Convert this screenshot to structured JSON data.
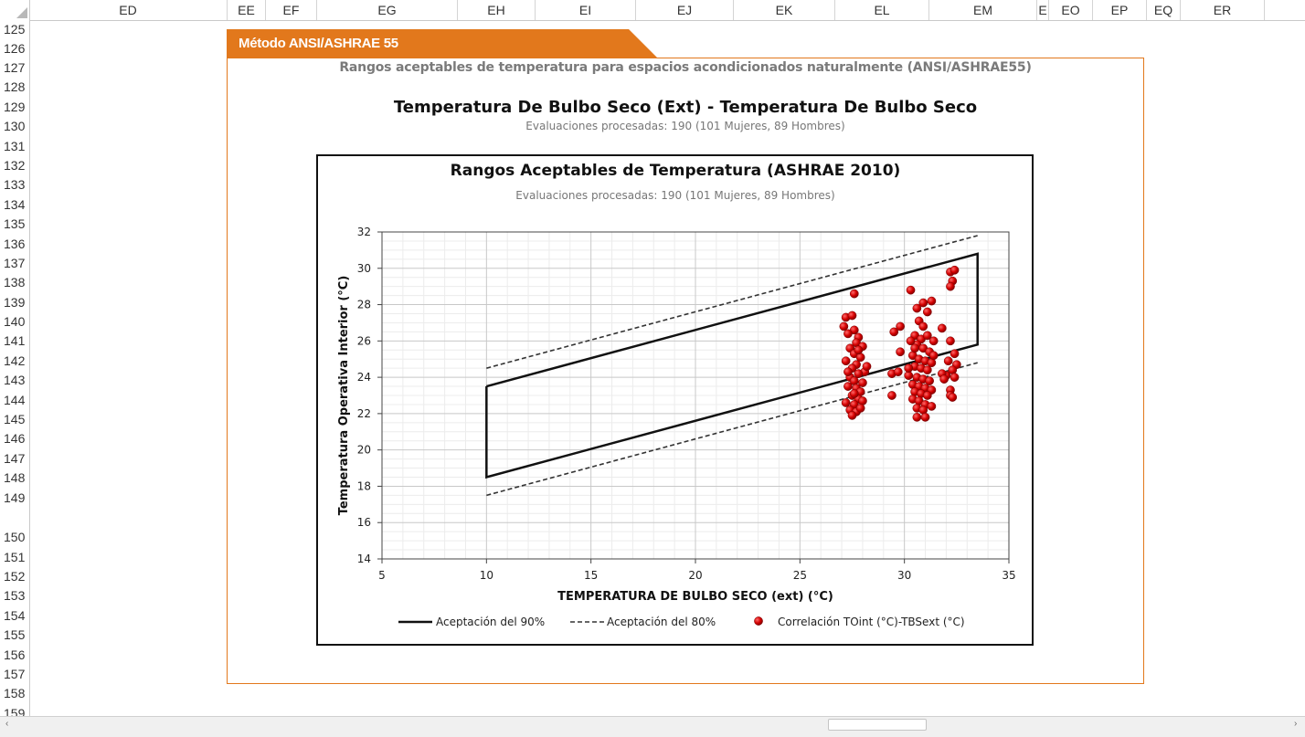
{
  "spreadsheet": {
    "columns": [
      "ED",
      "EE",
      "EF",
      "EG",
      "EH",
      "EI",
      "EJ",
      "EK",
      "EL",
      "EM",
      "E",
      "EO",
      "EP",
      "EQ",
      "ER"
    ],
    "rows": [
      "125",
      "126",
      "127",
      "128",
      "129",
      "130",
      "131",
      "132",
      "133",
      "134",
      "135",
      "136",
      "137",
      "138",
      "139",
      "140",
      "141",
      "142",
      "143",
      "144",
      "145",
      "146",
      "147",
      "148",
      "149",
      "150",
      "151",
      "152",
      "153",
      "154",
      "155",
      "156",
      "157",
      "158",
      "159"
    ]
  },
  "section": {
    "tab_label": "Método ANSI/ASHRAE 55",
    "subheading": "Rangos aceptables de temperatura para espacios acondicionados naturalmente (ANSI/ASHRAE55)",
    "title": "Temperatura De Bulbo Seco (Ext) - Temperatura De Bulbo Seco",
    "subtitle": "Evaluaciones procesadas: 190 (101 Mujeres, 89 Hombres)"
  },
  "colors": {
    "accent": "#e2781c",
    "points": "#d40000",
    "lines": "#111111"
  },
  "chart_data": {
    "type": "scatter",
    "title": "Rangos Aceptables de Temperatura (ASHRAE 2010)",
    "subtitle": "Evaluaciones procesadas: 190 (101 Mujeres, 89 Hombres)",
    "xlabel": "TEMPERATURA DE BULBO SECO (ext) (°C)",
    "ylabel": "Temperatura Operativa Interior (°C)",
    "xlim": [
      5,
      35
    ],
    "ylim": [
      14,
      32
    ],
    "xticks": [
      5,
      10,
      15,
      20,
      25,
      30,
      35
    ],
    "yticks": [
      14,
      16,
      18,
      20,
      22,
      24,
      26,
      28,
      30,
      32
    ],
    "grid": true,
    "legend_position": "bottom",
    "series": [
      {
        "name": "Aceptación del 90%",
        "style": "solid",
        "x": [
          10,
          33.5,
          33.5,
          10,
          10
        ],
        "y": [
          23.5,
          30.8,
          25.8,
          18.5,
          23.5
        ]
      },
      {
        "name": "Aceptación del 80%",
        "style": "dashed",
        "segments": [
          {
            "x": [
              10,
              33.5
            ],
            "y": [
              24.5,
              31.8
            ]
          },
          {
            "x": [
              10,
              33.5
            ],
            "y": [
              17.5,
              24.8
            ]
          }
        ]
      },
      {
        "name": "Correlación TOint (°C)-TBSext (°C)",
        "style": "marker",
        "points": [
          [
            27.6,
            28.6
          ],
          [
            27.2,
            27.3
          ],
          [
            27.5,
            27.4
          ],
          [
            27.1,
            26.8
          ],
          [
            27.6,
            26.6
          ],
          [
            27.8,
            26.2
          ],
          [
            27.3,
            26.4
          ],
          [
            27.7,
            25.9
          ],
          [
            28.0,
            25.7
          ],
          [
            27.4,
            25.6
          ],
          [
            27.6,
            25.3
          ],
          [
            27.9,
            25.1
          ],
          [
            27.2,
            24.9
          ],
          [
            27.7,
            24.7
          ],
          [
            27.5,
            24.5
          ],
          [
            28.1,
            24.3
          ],
          [
            27.8,
            24.2
          ],
          [
            27.4,
            24.0
          ],
          [
            27.6,
            23.8
          ],
          [
            28.0,
            23.7
          ],
          [
            27.3,
            23.5
          ],
          [
            27.7,
            23.4
          ],
          [
            27.9,
            23.2
          ],
          [
            27.5,
            23.0
          ],
          [
            27.8,
            22.8
          ],
          [
            27.2,
            22.6
          ],
          [
            27.6,
            22.5
          ],
          [
            28.0,
            22.7
          ],
          [
            27.4,
            22.2
          ],
          [
            27.7,
            22.1
          ],
          [
            27.5,
            21.9
          ],
          [
            27.9,
            22.3
          ],
          [
            27.3,
            24.3
          ],
          [
            27.8,
            25.5
          ],
          [
            28.2,
            24.6
          ],
          [
            27.6,
            23.1
          ],
          [
            30.3,
            28.8
          ],
          [
            30.6,
            27.8
          ],
          [
            30.9,
            28.1
          ],
          [
            31.1,
            27.6
          ],
          [
            31.3,
            28.2
          ],
          [
            30.7,
            27.1
          ],
          [
            30.9,
            26.8
          ],
          [
            29.5,
            26.5
          ],
          [
            29.8,
            26.8
          ],
          [
            30.5,
            26.3
          ],
          [
            30.8,
            26.1
          ],
          [
            31.1,
            26.3
          ],
          [
            31.4,
            26.0
          ],
          [
            30.6,
            25.8
          ],
          [
            30.9,
            25.6
          ],
          [
            31.2,
            25.4
          ],
          [
            29.8,
            25.4
          ],
          [
            30.4,
            25.2
          ],
          [
            30.7,
            25.0
          ],
          [
            31.0,
            24.9
          ],
          [
            31.3,
            24.8
          ],
          [
            30.5,
            24.6
          ],
          [
            30.8,
            24.5
          ],
          [
            31.1,
            24.4
          ],
          [
            29.4,
            24.2
          ],
          [
            29.7,
            24.3
          ],
          [
            30.2,
            24.1
          ],
          [
            30.6,
            24.0
          ],
          [
            30.9,
            23.9
          ],
          [
            31.2,
            23.8
          ],
          [
            30.4,
            23.6
          ],
          [
            30.7,
            23.5
          ],
          [
            31.0,
            23.4
          ],
          [
            31.3,
            23.3
          ],
          [
            30.5,
            23.2
          ],
          [
            30.8,
            23.1
          ],
          [
            31.1,
            23.0
          ],
          [
            29.4,
            23.0
          ],
          [
            30.4,
            22.8
          ],
          [
            30.7,
            22.7
          ],
          [
            31.0,
            22.5
          ],
          [
            31.3,
            22.4
          ],
          [
            30.6,
            22.3
          ],
          [
            30.9,
            22.2
          ],
          [
            30.6,
            21.8
          ],
          [
            31.0,
            21.8
          ],
          [
            30.2,
            24.5
          ],
          [
            30.5,
            25.6
          ],
          [
            31.4,
            25.2
          ],
          [
            30.3,
            26.0
          ],
          [
            31.8,
            26.7
          ],
          [
            32.2,
            26.0
          ],
          [
            32.4,
            25.3
          ],
          [
            32.1,
            24.9
          ],
          [
            32.5,
            24.7
          ],
          [
            32.3,
            24.4
          ],
          [
            32.0,
            24.1
          ],
          [
            32.4,
            24.0
          ],
          [
            32.2,
            23.3
          ],
          [
            32.2,
            23.0
          ],
          [
            32.3,
            22.9
          ],
          [
            31.8,
            24.2
          ],
          [
            31.9,
            23.9
          ],
          [
            32.2,
            29.8
          ],
          [
            32.4,
            29.9
          ],
          [
            32.3,
            29.3
          ],
          [
            32.2,
            29.0
          ]
        ]
      }
    ]
  }
}
